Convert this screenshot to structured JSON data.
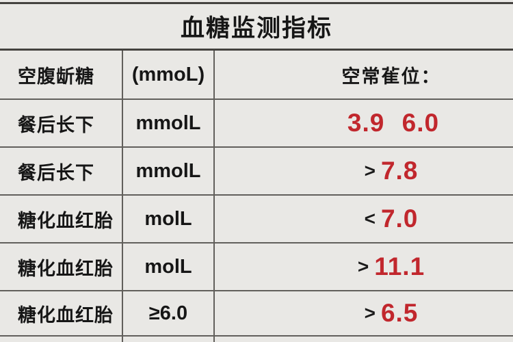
{
  "title": "血糖监测指标",
  "colors": {
    "accent_red": "#c1272d",
    "text": "#161616",
    "background": "#e9e8e5",
    "grid_line": "#615f5b"
  },
  "table": {
    "header": {
      "col1": "空腹龂糖",
      "col2": "(mmoL)",
      "col3": "空常雈位："
    },
    "rows": [
      {
        "name": "餐后长下",
        "unit": "mmolL",
        "op": "",
        "value": "3.9 6.0"
      },
      {
        "name": "餐后长下",
        "unit": "mmolL",
        "op": ">",
        "value": "7.8"
      },
      {
        "name": "糖化血红胎",
        "unit": "molL",
        "op": "<",
        "value": "7.0"
      },
      {
        "name": "糖化血红胎",
        "unit": "molL",
        "op": ">",
        "value": "11.1"
      },
      {
        "name": "糖化血红胎",
        "unit": "≥6.0",
        "op": ">",
        "value": "6.5"
      }
    ]
  },
  "chart_data": {
    "type": "table",
    "title": "血糖监测指标",
    "columns": [
      "空腹龂糖",
      "(mmoL)",
      "空常雈位："
    ],
    "rows": [
      [
        "餐后长下",
        "mmolL",
        "3.9 6.0"
      ],
      [
        "餐后长下",
        "mmolL",
        ">7.8"
      ],
      [
        "糖化血红胎",
        "molL",
        "<7.0"
      ],
      [
        "糖化血红胎",
        "molL",
        ">11.1"
      ],
      [
        "糖化血红胎",
        "≥6.0",
        ">6.5"
      ]
    ],
    "notes": "highlighted numeric thresholds rendered in red (#c1272d); comparison operators in black"
  }
}
